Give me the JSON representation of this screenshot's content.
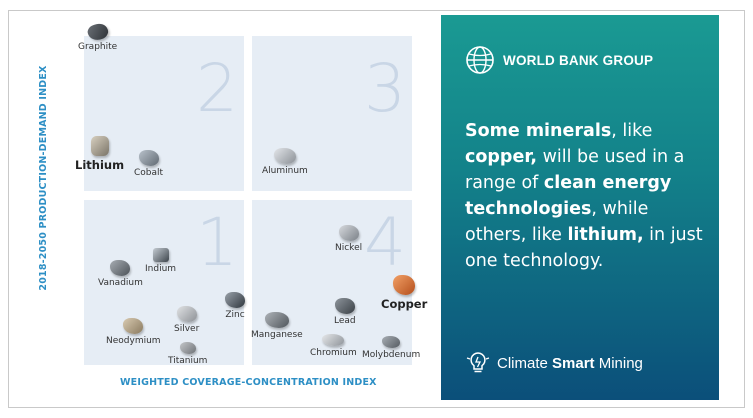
{
  "chart": {
    "y_axis_label": "2018-2050 PRODUCTION-DEMAND INDEX",
    "x_axis_label": "WEIGHTED COVERAGE-CONCENTRATION INDEX",
    "quadrants": {
      "q1": "1",
      "q2": "2",
      "q3": "3",
      "q4": "4"
    },
    "minerals": {
      "graphite": "Graphite",
      "lithium": "Lithium",
      "cobalt": "Cobalt",
      "aluminum": "Aluminum",
      "indium": "Indium",
      "vanadium": "Vanadium",
      "nickel": "Nickel",
      "copper": "Copper",
      "silver": "Silver",
      "zinc": "Zinc",
      "neodymium": "Neodymium",
      "titanium": "Titanium",
      "manganese": "Manganese",
      "lead": "Lead",
      "chromium": "Chromium",
      "molybdenum": "Molybdenum"
    },
    "mineral_colors": {
      "copper": "#d9692b",
      "default": "#6b747c"
    }
  },
  "panel": {
    "org_name": "WORLD BANK GROUP",
    "quote": {
      "p1_bold": "Some minerals",
      "p2": ", like ",
      "p3_bold": "copper,",
      "p4": " will be used in a range of ",
      "p5_bold": "clean energy technologies",
      "p6": ", while others, like ",
      "p7_bold": "lithium,",
      "p8": " in just one technology."
    },
    "footer": {
      "pre": "Climate ",
      "bold": "Smart",
      "post": " Mining"
    },
    "background_top": "#1a9a93",
    "background_bottom": "#0b4f7a"
  }
}
